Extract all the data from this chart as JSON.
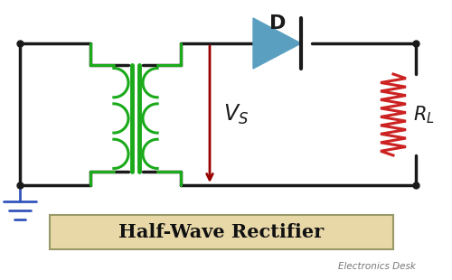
{
  "title": "Half-Wave Rectifier",
  "subtitle": "Electronics Desk",
  "bg_color": "#ffffff",
  "wire_color": "#1a1a1a",
  "transformer_color": "#1aaa1a",
  "diode_color": "#5b9fc0",
  "resistor_color": "#cc2222",
  "ground_color": "#3355bb",
  "vs_color": "#990000",
  "diode_label": "D",
  "title_box_fill": "#e8d8a8",
  "title_box_edge": "#999966",
  "title_fontsize": 15,
  "label_fontsize": 13
}
